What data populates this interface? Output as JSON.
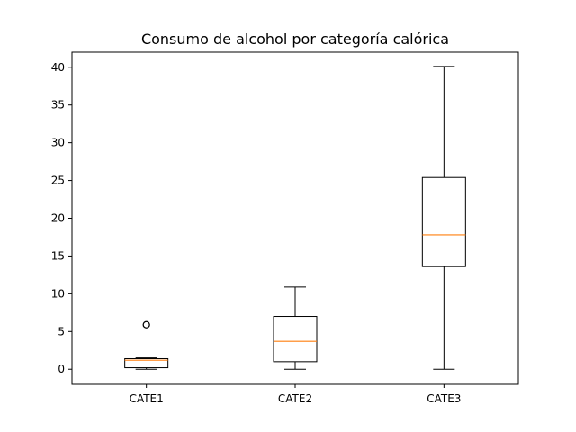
{
  "chart_data": {
    "type": "box",
    "title": "Consumo de alcohol por categoría calórica",
    "xlabel": "",
    "ylabel": "",
    "ylim": [
      -2,
      42
    ],
    "yticks": [
      "0",
      "5",
      "10",
      "15",
      "20",
      "25",
      "30",
      "35",
      "40"
    ],
    "categories": [
      "CATE1",
      "CATE2",
      "CATE3"
    ],
    "boxes": [
      {
        "category": "CATE1",
        "whisker_low": 0.0,
        "q1": 0.2,
        "median": 1.2,
        "q3": 1.4,
        "whisker_high": 1.5,
        "outliers": [
          5.9
        ]
      },
      {
        "category": "CATE2",
        "whisker_low": 0.0,
        "q1": 1.0,
        "median": 3.7,
        "q3": 7.0,
        "whisker_high": 10.9,
        "outliers": []
      },
      {
        "category": "CATE3",
        "whisker_low": 0.0,
        "q1": 13.6,
        "median": 17.8,
        "q3": 25.4,
        "whisker_high": 40.1,
        "outliers": []
      }
    ],
    "grid": false,
    "colors": {
      "box": "#000000",
      "median": "#ff7f0e",
      "outlier": "#000000"
    }
  }
}
